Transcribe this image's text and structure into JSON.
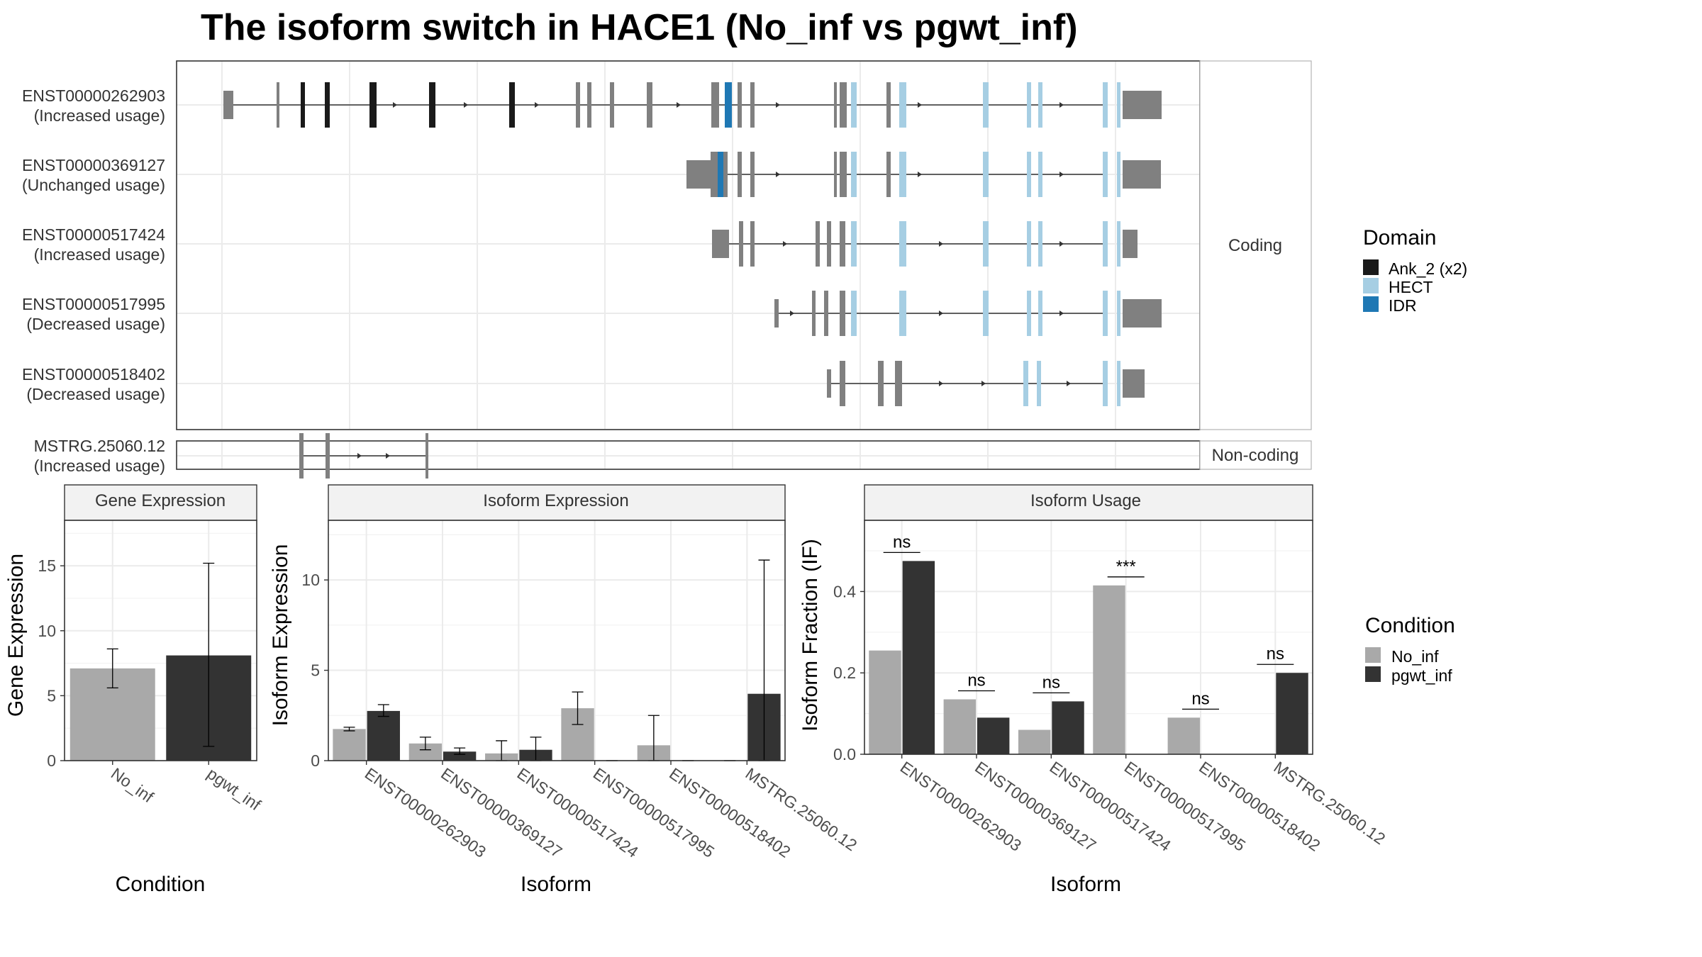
{
  "title": "The isoform switch in HACE1 (No_inf vs pgwt_inf)",
  "structure": {
    "coding_label": "Coding",
    "noncoding_label": "Non-coding",
    "isoforms": [
      {
        "id": "ENST00000262903",
        "usage": "(Increased usage)",
        "group": "Coding"
      },
      {
        "id": "ENST00000369127",
        "usage": "(Unchanged usage)",
        "group": "Coding"
      },
      {
        "id": "ENST00000517424",
        "usage": "(Increased usage)",
        "group": "Coding"
      },
      {
        "id": "ENST00000517995",
        "usage": "(Decreased usage)",
        "group": "Coding"
      },
      {
        "id": "ENST00000518402",
        "usage": "(Decreased usage)",
        "group": "Coding"
      },
      {
        "id": "MSTRG.25060.12",
        "usage": "(Increased usage)",
        "group": "Non-coding"
      }
    ]
  },
  "legends": {
    "domain": {
      "title": "Domain",
      "items": [
        {
          "label": "Ank_2 (x2)",
          "color": "#1a1a1a"
        },
        {
          "label": "HECT",
          "color": "#a6cee3"
        },
        {
          "label": "IDR",
          "color": "#1f78b4"
        }
      ]
    },
    "condition": {
      "title": "Condition",
      "items": [
        {
          "label": "No_inf",
          "color": "#a9a9a9"
        },
        {
          "label": "pgwt_inf",
          "color": "#333333"
        }
      ]
    }
  },
  "chart_data": [
    {
      "type": "bar",
      "title": "Gene Expression",
      "xlabel": "Condition",
      "ylabel": "Gene Expression",
      "ylim": [
        0,
        18.5
      ],
      "yticks": [
        0,
        5,
        10,
        15
      ],
      "categories": [
        "No_inf",
        "pgwt_inf"
      ],
      "values": [
        7.1,
        8.1
      ],
      "error_low": [
        5.6,
        1.1
      ],
      "error_high": [
        8.6,
        15.2
      ],
      "colors": [
        "#a9a9a9",
        "#333333"
      ]
    },
    {
      "type": "bar",
      "title": "Isoform Expression",
      "xlabel": "Isoform",
      "ylabel": "Isoform Expression",
      "ylim": [
        0,
        13.3
      ],
      "yticks": [
        0,
        5,
        10
      ],
      "categories": [
        "ENST00000262903",
        "ENST00000369127",
        "ENST00000517424",
        "ENST00000517995",
        "ENST00000518402",
        "MSTRG.25060.12"
      ],
      "series": [
        {
          "name": "No_inf",
          "color": "#a9a9a9",
          "values": [
            1.75,
            0.95,
            0.4,
            2.9,
            0.85,
            0.0
          ],
          "error_low": [
            1.65,
            0.6,
            0.0,
            2.0,
            0.0,
            0.0
          ],
          "error_high": [
            1.85,
            1.3,
            1.1,
            3.8,
            2.5,
            0.0
          ]
        },
        {
          "name": "pgwt_inf",
          "color": "#333333",
          "values": [
            2.75,
            0.5,
            0.6,
            0.0,
            0.0,
            3.7
          ],
          "error_low": [
            2.45,
            0.35,
            0.0,
            0.0,
            0.0,
            0.0
          ],
          "error_high": [
            3.1,
            0.7,
            1.3,
            0.0,
            0.0,
            11.1
          ]
        }
      ]
    },
    {
      "type": "bar",
      "title": "Isoform Usage",
      "xlabel": "Isoform",
      "ylabel": "Isoform Fraction (IF)",
      "ylim": [
        0,
        0.575
      ],
      "yticks": [
        0.0,
        0.2,
        0.4
      ],
      "categories": [
        "ENST00000262903",
        "ENST00000369127",
        "ENST00000517424",
        "ENST00000517995",
        "ENST00000518402",
        "MSTRG.25060.12"
      ],
      "series": [
        {
          "name": "No_inf",
          "color": "#a9a9a9",
          "values": [
            0.255,
            0.135,
            0.06,
            0.415,
            0.09,
            0.0
          ]
        },
        {
          "name": "pgwt_inf",
          "color": "#333333",
          "values": [
            0.475,
            0.09,
            0.13,
            0.0,
            0.0,
            0.2
          ]
        }
      ],
      "significance": [
        "ns",
        "ns",
        "ns",
        "***",
        "ns",
        "ns"
      ]
    }
  ]
}
